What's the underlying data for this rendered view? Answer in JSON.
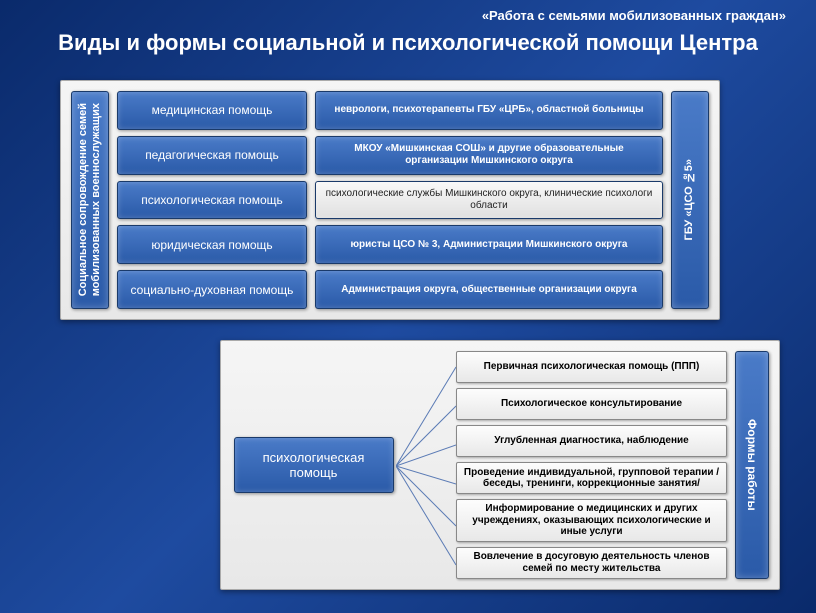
{
  "header_sub": "«Работа с семьями мобилизованных граждан»",
  "title": "Виды и формы социальной и психологической помощи Центра",
  "block1": {
    "left_vbar": "Социальное сопровождение семей\nмобилизованных военнослужащих",
    "right_vbar": "ГБУ «ЦСО №5»",
    "rows": [
      {
        "left": "медицинская помощь",
        "right": "неврологи, психотерапевты ГБУ «ЦРБ», областной больницы",
        "light": false
      },
      {
        "left": "педагогическая помощь",
        "right": "МКОУ «Мишкинская СОШ» и другие образовательные организации Мишкинского округа",
        "light": false
      },
      {
        "left": "психологическая помощь",
        "right": "психологические службы Мишкинского округа, клинические психологи области",
        "light": true
      },
      {
        "left": "юридическая помощь",
        "right": "юристы ЦСО № 3, Администрации Мишкинского округа",
        "light": false
      },
      {
        "left": "социально-духовная помощь",
        "right": "Администрация округа, общественные организации округа",
        "light": false
      }
    ]
  },
  "block2": {
    "hub": "психологическая помощь",
    "right_vbar": "Формы работы",
    "items": [
      "Первичная психологическая помощь (ППП)",
      "Психологическое консультирование",
      "Углубленная диагностика, наблюдение",
      "Проведение индивидуальной, групповой терапии /беседы, тренинги, коррекционные занятия/",
      "Информирование о медицинских и других учреждениях, оказывающих психологические и иные услуги",
      "Вовлечение в досуговую деятельность членов семей по месту жительства"
    ]
  },
  "colors": {
    "bg_grad_a": "#0a2a6b",
    "bg_grad_b": "#1e4ba0",
    "box_blue_a": "#4a7bc8",
    "box_blue_b": "#2a5aa8",
    "box_border": "#1a3a6a",
    "panel_bg_a": "#f5f5f5",
    "panel_bg_b": "#e8e8e8"
  }
}
